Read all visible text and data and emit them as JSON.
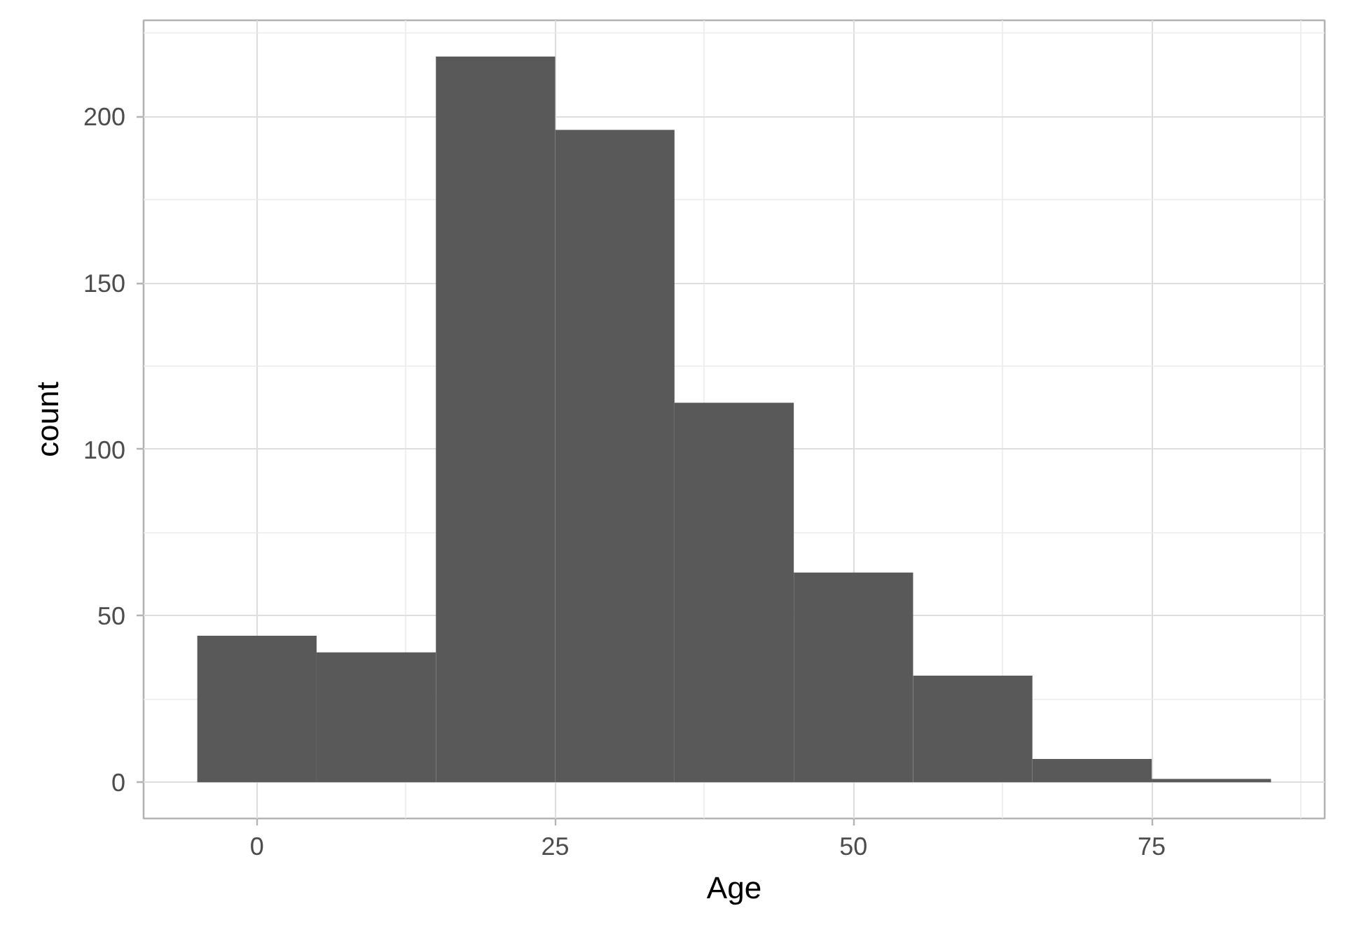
{
  "chart_data": {
    "type": "histogram",
    "xlabel": "Age",
    "ylabel": "count",
    "bins": [
      -5,
      5,
      15,
      25,
      35,
      45,
      55,
      65,
      75,
      85
    ],
    "values": [
      44,
      39,
      218,
      196,
      114,
      63,
      32,
      7,
      1
    ],
    "color": "#595959",
    "xlim": [
      -9.5,
      89.5
    ],
    "ylim": [
      -10.9,
      228.9
    ],
    "xticks": [
      0,
      25,
      50,
      75
    ],
    "yticks": [
      0,
      50,
      100,
      150,
      200
    ],
    "grid": true
  }
}
